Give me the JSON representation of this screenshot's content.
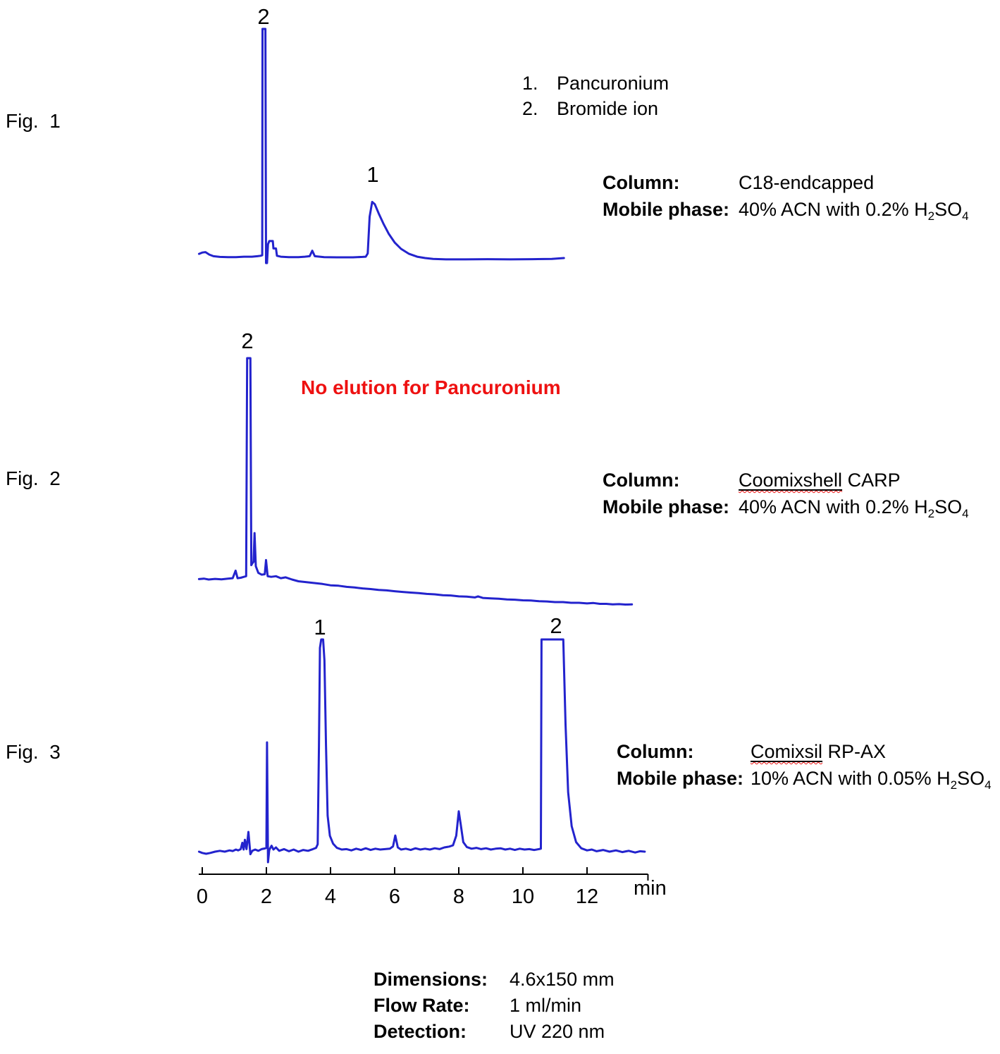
{
  "colors": {
    "trace": "#2323cd",
    "annotation_red": "#ee1111",
    "text": "#000000",
    "axis": "#000000"
  },
  "legend": {
    "items": [
      {
        "num": "1.",
        "name": "Pancuronium"
      },
      {
        "num": "2.",
        "name": "Bromide ion"
      }
    ]
  },
  "figures": [
    {
      "fig_label": "Fig.  1",
      "column_label": "Column:",
      "column_value_underlined": "",
      "column_value_rest": "C18-endcapped",
      "mobile_label": "Mobile phase:",
      "mobile_pre": "40% ACN with 0.2% H",
      "mobile_sub1": "2",
      "mobile_mid": "SO",
      "mobile_sub2": "4"
    },
    {
      "fig_label": "Fig.  2",
      "annotation": "No elution for Pancuronium",
      "column_label": "Column:",
      "column_value_underlined": "Coomixshell",
      "column_value_rest": " CARP",
      "mobile_label": "Mobile phase:",
      "mobile_pre": "40% ACN with 0.2% H",
      "mobile_sub1": "2",
      "mobile_mid": "SO",
      "mobile_sub2": "4"
    },
    {
      "fig_label": "Fig.  3",
      "column_label": "Column:",
      "column_value_underlined": "Comixsil",
      "column_value_rest": " RP-AX",
      "mobile_label": "Mobile phase:",
      "mobile_pre": "10% ACN with 0.05% H",
      "mobile_sub1": "2",
      "mobile_mid": "SO",
      "mobile_sub2": "4"
    }
  ],
  "axis": {
    "ticks": [
      "0",
      "2",
      "4",
      "6",
      "8",
      "10",
      "12"
    ],
    "tick_values": [
      0,
      2,
      4,
      6,
      8,
      10,
      12
    ],
    "unit": "min",
    "range_min": [
      0,
      13.9
    ]
  },
  "footer": {
    "rows": [
      {
        "label": "Dimensions:",
        "value": "4.6x150 mm"
      },
      {
        "label": "Flow Rate:",
        "value": "1 ml/min"
      },
      {
        "label": "Detection:",
        "value": "UV 220 nm"
      }
    ]
  },
  "chart_data": [
    {
      "type": "line",
      "name": "Fig 1 chromatogram - C18-endcapped",
      "x_unit": "min",
      "x_range": [
        -0.1,
        11.3
      ],
      "peaks": [
        {
          "label": "2",
          "t_min": 1.9,
          "compound": "Bromide ion"
        },
        {
          "label": "1",
          "t_min": 5.3,
          "compound": "Pancuronium"
        }
      ],
      "points": [
        [
          -0.1,
          0.018
        ],
        [
          0.0,
          0.024
        ],
        [
          0.1,
          0.026
        ],
        [
          0.22,
          0.015
        ],
        [
          0.35,
          0.008
        ],
        [
          0.55,
          0.005
        ],
        [
          0.8,
          0.004
        ],
        [
          1.05,
          0.004
        ],
        [
          1.3,
          0.006
        ],
        [
          1.55,
          0.006
        ],
        [
          1.72,
          0.008
        ],
        [
          1.82,
          0.01
        ],
        [
          1.87,
          0.012
        ],
        [
          1.88,
          1.0
        ],
        [
          1.97,
          1.0
        ],
        [
          1.99,
          -0.022
        ],
        [
          2.02,
          -0.022
        ],
        [
          2.05,
          0.06
        ],
        [
          2.09,
          0.074
        ],
        [
          2.2,
          0.074
        ],
        [
          2.22,
          0.042
        ],
        [
          2.3,
          0.042
        ],
        [
          2.33,
          0.01
        ],
        [
          2.45,
          0.006
        ],
        [
          2.7,
          0.004
        ],
        [
          3.0,
          0.004
        ],
        [
          3.2,
          0.006
        ],
        [
          3.35,
          0.008
        ],
        [
          3.43,
          0.032
        ],
        [
          3.51,
          0.008
        ],
        [
          3.8,
          0.004
        ],
        [
          4.2,
          0.003
        ],
        [
          4.7,
          0.003
        ],
        [
          5.0,
          0.005
        ],
        [
          5.1,
          0.006
        ],
        [
          5.16,
          0.02
        ],
        [
          5.22,
          0.18
        ],
        [
          5.3,
          0.245
        ],
        [
          5.38,
          0.235
        ],
        [
          5.5,
          0.195
        ],
        [
          5.65,
          0.15
        ],
        [
          5.82,
          0.105
        ],
        [
          6.0,
          0.068
        ],
        [
          6.2,
          0.04
        ],
        [
          6.45,
          0.018
        ],
        [
          6.7,
          0.006
        ],
        [
          6.95,
          0.0
        ],
        [
          7.2,
          -0.004
        ],
        [
          7.6,
          -0.006
        ],
        [
          8.2,
          -0.006
        ],
        [
          8.9,
          -0.005
        ],
        [
          9.6,
          -0.006
        ],
        [
          10.3,
          -0.005
        ],
        [
          10.9,
          -0.004
        ],
        [
          11.28,
          0.0
        ]
      ]
    },
    {
      "type": "line",
      "name": "Fig 2 chromatogram - Coomixshell CARP",
      "x_unit": "min",
      "x_range": [
        -0.1,
        13.4
      ],
      "peaks": [
        {
          "label": "2",
          "t_min": 1.45,
          "compound": "Bromide ion"
        }
      ],
      "points": [
        [
          -0.1,
          0.002
        ],
        [
          0.05,
          0.004
        ],
        [
          0.2,
          0.0
        ],
        [
          0.4,
          0.003
        ],
        [
          0.6,
          0.001
        ],
        [
          0.8,
          0.004
        ],
        [
          0.95,
          0.006
        ],
        [
          1.04,
          0.04
        ],
        [
          1.1,
          0.006
        ],
        [
          1.2,
          0.008
        ],
        [
          1.3,
          0.012
        ],
        [
          1.37,
          0.015
        ],
        [
          1.4,
          1.0
        ],
        [
          1.5,
          1.0
        ],
        [
          1.53,
          0.065
        ],
        [
          1.57,
          0.075
        ],
        [
          1.6,
          0.08
        ],
        [
          1.63,
          0.21
        ],
        [
          1.67,
          0.06
        ],
        [
          1.75,
          0.03
        ],
        [
          1.85,
          0.022
        ],
        [
          1.95,
          0.024
        ],
        [
          1.99,
          0.088
        ],
        [
          2.04,
          0.015
        ],
        [
          2.15,
          0.012
        ],
        [
          2.3,
          0.015
        ],
        [
          2.45,
          0.006
        ],
        [
          2.6,
          0.01
        ],
        [
          2.8,
          0.0
        ],
        [
          3.0,
          -0.008
        ],
        [
          3.25,
          -0.012
        ],
        [
          3.5,
          -0.016
        ],
        [
          3.75,
          -0.02
        ],
        [
          4.0,
          -0.026
        ],
        [
          4.25,
          -0.028
        ],
        [
          4.5,
          -0.033
        ],
        [
          4.75,
          -0.036
        ],
        [
          5.0,
          -0.04
        ],
        [
          5.25,
          -0.043
        ],
        [
          5.5,
          -0.047
        ],
        [
          5.75,
          -0.049
        ],
        [
          6.0,
          -0.053
        ],
        [
          6.25,
          -0.056
        ],
        [
          6.5,
          -0.059
        ],
        [
          6.75,
          -0.061
        ],
        [
          7.0,
          -0.065
        ],
        [
          7.25,
          -0.067
        ],
        [
          7.5,
          -0.071
        ],
        [
          7.75,
          -0.072
        ],
        [
          8.0,
          -0.076
        ],
        [
          8.25,
          -0.077
        ],
        [
          8.5,
          -0.081
        ],
        [
          8.6,
          -0.076
        ],
        [
          8.75,
          -0.083
        ],
        [
          9.0,
          -0.085
        ],
        [
          9.25,
          -0.087
        ],
        [
          9.5,
          -0.09
        ],
        [
          9.75,
          -0.091
        ],
        [
          10.0,
          -0.094
        ],
        [
          10.25,
          -0.095
        ],
        [
          10.5,
          -0.098
        ],
        [
          10.75,
          -0.099
        ],
        [
          11.0,
          -0.102
        ],
        [
          11.25,
          -0.102
        ],
        [
          11.5,
          -0.105
        ],
        [
          11.75,
          -0.105
        ],
        [
          12.0,
          -0.108
        ],
        [
          12.2,
          -0.106
        ],
        [
          12.4,
          -0.11
        ],
        [
          12.6,
          -0.11
        ],
        [
          12.8,
          -0.112
        ],
        [
          13.0,
          -0.111
        ],
        [
          13.2,
          -0.113
        ],
        [
          13.4,
          -0.112
        ]
      ]
    },
    {
      "type": "line",
      "name": "Fig 3 chromatogram - Comixsil RP-AX",
      "x_unit": "min",
      "x_range": [
        -0.1,
        13.8
      ],
      "peaks": [
        {
          "label": "1",
          "t_min": 3.7,
          "compound": "Pancuronium"
        },
        {
          "label": "2",
          "t_min": 10.9,
          "compound": "Bromide ion"
        }
      ],
      "points": [
        [
          -0.1,
          0.0
        ],
        [
          0.0,
          -0.006
        ],
        [
          0.12,
          -0.01
        ],
        [
          0.25,
          -0.006
        ],
        [
          0.4,
          0.0
        ],
        [
          0.55,
          0.004
        ],
        [
          0.7,
          0.0
        ],
        [
          0.85,
          0.006
        ],
        [
          0.95,
          0.003
        ],
        [
          1.05,
          0.01
        ],
        [
          1.12,
          0.006
        ],
        [
          1.2,
          0.012
        ],
        [
          1.25,
          0.042
        ],
        [
          1.29,
          0.01
        ],
        [
          1.33,
          0.056
        ],
        [
          1.38,
          0.012
        ],
        [
          1.44,
          0.093
        ],
        [
          1.5,
          -0.012
        ],
        [
          1.56,
          0.004
        ],
        [
          1.65,
          0.01
        ],
        [
          1.75,
          0.004
        ],
        [
          1.85,
          0.012
        ],
        [
          1.95,
          0.015
        ],
        [
          2.0,
          0.018
        ],
        [
          2.02,
          0.515
        ],
        [
          2.05,
          -0.05
        ],
        [
          2.09,
          0.008
        ],
        [
          2.16,
          0.028
        ],
        [
          2.22,
          0.01
        ],
        [
          2.3,
          0.02
        ],
        [
          2.4,
          0.004
        ],
        [
          2.55,
          0.012
        ],
        [
          2.7,
          0.002
        ],
        [
          2.85,
          0.01
        ],
        [
          3.0,
          0.0
        ],
        [
          3.15,
          0.008
        ],
        [
          3.3,
          0.004
        ],
        [
          3.45,
          0.012
        ],
        [
          3.55,
          0.018
        ],
        [
          3.6,
          0.035
        ],
        [
          3.64,
          0.5
        ],
        [
          3.67,
          0.96
        ],
        [
          3.71,
          1.0
        ],
        [
          3.77,
          1.0
        ],
        [
          3.81,
          0.9
        ],
        [
          3.86,
          0.5
        ],
        [
          3.91,
          0.17
        ],
        [
          3.98,
          0.075
        ],
        [
          4.08,
          0.038
        ],
        [
          4.2,
          0.018
        ],
        [
          4.35,
          0.01
        ],
        [
          4.5,
          0.012
        ],
        [
          4.65,
          0.006
        ],
        [
          4.8,
          0.014
        ],
        [
          4.95,
          0.008
        ],
        [
          5.1,
          0.016
        ],
        [
          5.25,
          0.008
        ],
        [
          5.4,
          0.014
        ],
        [
          5.55,
          0.01
        ],
        [
          5.7,
          0.012
        ],
        [
          5.85,
          0.014
        ],
        [
          5.95,
          0.025
        ],
        [
          6.02,
          0.076
        ],
        [
          6.1,
          0.02
        ],
        [
          6.2,
          0.01
        ],
        [
          6.35,
          0.014
        ],
        [
          6.5,
          0.008
        ],
        [
          6.65,
          0.016
        ],
        [
          6.8,
          0.01
        ],
        [
          6.95,
          0.014
        ],
        [
          7.1,
          0.01
        ],
        [
          7.25,
          0.016
        ],
        [
          7.4,
          0.012
        ],
        [
          7.55,
          0.02
        ],
        [
          7.7,
          0.024
        ],
        [
          7.82,
          0.03
        ],
        [
          7.92,
          0.075
        ],
        [
          8.0,
          0.19
        ],
        [
          8.06,
          0.13
        ],
        [
          8.14,
          0.045
        ],
        [
          8.25,
          0.022
        ],
        [
          8.4,
          0.014
        ],
        [
          8.55,
          0.018
        ],
        [
          8.7,
          0.012
        ],
        [
          8.85,
          0.016
        ],
        [
          9.0,
          0.01
        ],
        [
          9.15,
          0.014
        ],
        [
          9.3,
          0.016
        ],
        [
          9.45,
          0.01
        ],
        [
          9.6,
          0.014
        ],
        [
          9.75,
          0.008
        ],
        [
          9.9,
          0.014
        ],
        [
          10.05,
          0.01
        ],
        [
          10.2,
          0.012
        ],
        [
          10.35,
          0.008
        ],
        [
          10.5,
          0.012
        ],
        [
          10.56,
          0.014
        ],
        [
          10.58,
          1.0
        ],
        [
          11.26,
          1.0
        ],
        [
          11.33,
          0.6
        ],
        [
          11.41,
          0.28
        ],
        [
          11.52,
          0.12
        ],
        [
          11.66,
          0.045
        ],
        [
          11.82,
          0.016
        ],
        [
          12.0,
          0.006
        ],
        [
          12.15,
          0.01
        ],
        [
          12.3,
          0.002
        ],
        [
          12.5,
          0.008
        ],
        [
          12.7,
          0.0
        ],
        [
          12.9,
          0.006
        ],
        [
          13.1,
          -0.002
        ],
        [
          13.3,
          0.004
        ],
        [
          13.5,
          -0.004
        ],
        [
          13.65,
          0.002
        ],
        [
          13.8,
          0.0
        ]
      ]
    }
  ]
}
